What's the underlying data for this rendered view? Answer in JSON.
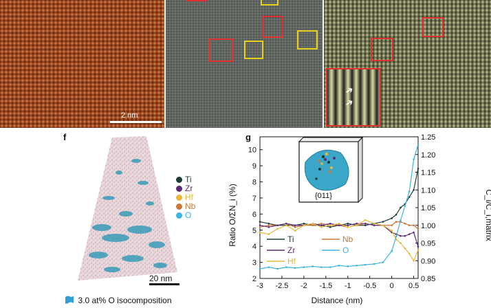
{
  "panels": {
    "top": {
      "scale_bar_label": "2 nm"
    },
    "f": {
      "letter": "f",
      "legend": [
        {
          "label": "Ti",
          "color": "#1f3b35"
        },
        {
          "label": "Zr",
          "color": "#5a2a7a"
        },
        {
          "label": "Hf",
          "color": "#e8b83a"
        },
        {
          "label": "Nb",
          "color": "#c8783a"
        },
        {
          "label": "O",
          "color": "#3bb5e0"
        }
      ],
      "scale_bar_label": "20 nm",
      "isocomposition_label": "3.0 at% O isocomposition"
    },
    "g": {
      "letter": "g",
      "inset_label": "{011}"
    }
  },
  "chart_data": {
    "type": "line",
    "xlabel": "Distance (nm)",
    "ylabel_left": "Ratio O/ΣN_i (%)",
    "ylabel_right": "C_i/C_i,matrix",
    "xlim": [
      -3,
      0.6
    ],
    "ylim_left": [
      2,
      10.8
    ],
    "ylim_right": [
      0.85,
      1.25
    ],
    "x_ticks": [
      "-3",
      "-2.5",
      "-2",
      "-1.5",
      "-1",
      "-0.5",
      "0",
      "0.5"
    ],
    "y_ticks_left": [
      "2",
      "3",
      "4",
      "5",
      "6",
      "7",
      "8",
      "9",
      "10"
    ],
    "y_ticks_right": [
      "0.85",
      "0.90",
      "0.95",
      "1.00",
      "1.05",
      "1.10",
      "1.15",
      "1.20",
      "1.25"
    ],
    "x": [
      -3,
      -2.8,
      -2.6,
      -2.4,
      -2.2,
      -2.0,
      -1.8,
      -1.6,
      -1.4,
      -1.2,
      -1.0,
      -0.8,
      -0.6,
      -0.4,
      -0.2,
      0.0,
      0.1,
      0.2,
      0.3,
      0.4,
      0.5,
      0.6
    ],
    "series": [
      {
        "name": "Ti",
        "color": "#1f3b35",
        "axis": "right",
        "values": [
          1.01,
          1.005,
          1.0,
          1.0,
          1.0,
          1.005,
          1.0,
          1.0,
          0.995,
          1.0,
          1.005,
          1.0,
          1.0,
          1.005,
          1.01,
          1.02,
          1.03,
          1.05,
          1.06,
          1.08,
          1.1,
          1.16
        ]
      },
      {
        "name": "Nb",
        "color": "#c8783a",
        "axis": "right",
        "values": [
          0.995,
          1.0,
          1.0,
          1.005,
          0.995,
          1.0,
          1.0,
          1.005,
          1.0,
          1.0,
          0.995,
          1.0,
          1.005,
          1.0,
          1.0,
          1.0,
          1.01,
          1.01,
          1.005,
          1.0,
          1.0,
          0.99
        ]
      },
      {
        "name": "Zr",
        "color": "#5a2a7a",
        "axis": "right",
        "values": [
          1.0,
          0.995,
          1.0,
          1.005,
          1.0,
          1.0,
          1.005,
          1.0,
          1.005,
          1.0,
          1.0,
          1.005,
          1.005,
          1.0,
          1.0,
          0.98,
          0.975,
          0.97,
          0.97,
          0.975,
          0.98,
          0.94
        ]
      },
      {
        "name": "Hf",
        "color": "#e8b83a",
        "axis": "right",
        "values": [
          0.98,
          0.975,
          0.99,
          1.0,
          0.985,
          1.0,
          1.005,
          0.995,
          1.0,
          1.005,
          0.995,
          1.0,
          1.015,
          1.005,
          1.0,
          0.985,
          0.96,
          0.95,
          0.935,
          0.92,
          0.9,
          0.93
        ]
      },
      {
        "name": "O",
        "color": "#3bb5e0",
        "axis": "left",
        "values": [
          2.6,
          2.7,
          2.6,
          2.7,
          2.65,
          2.7,
          2.75,
          2.7,
          2.7,
          2.8,
          2.75,
          2.8,
          2.85,
          2.9,
          3.0,
          3.7,
          4.6,
          5.6,
          6.5,
          7.4,
          9.4,
          10.3
        ]
      }
    ]
  }
}
